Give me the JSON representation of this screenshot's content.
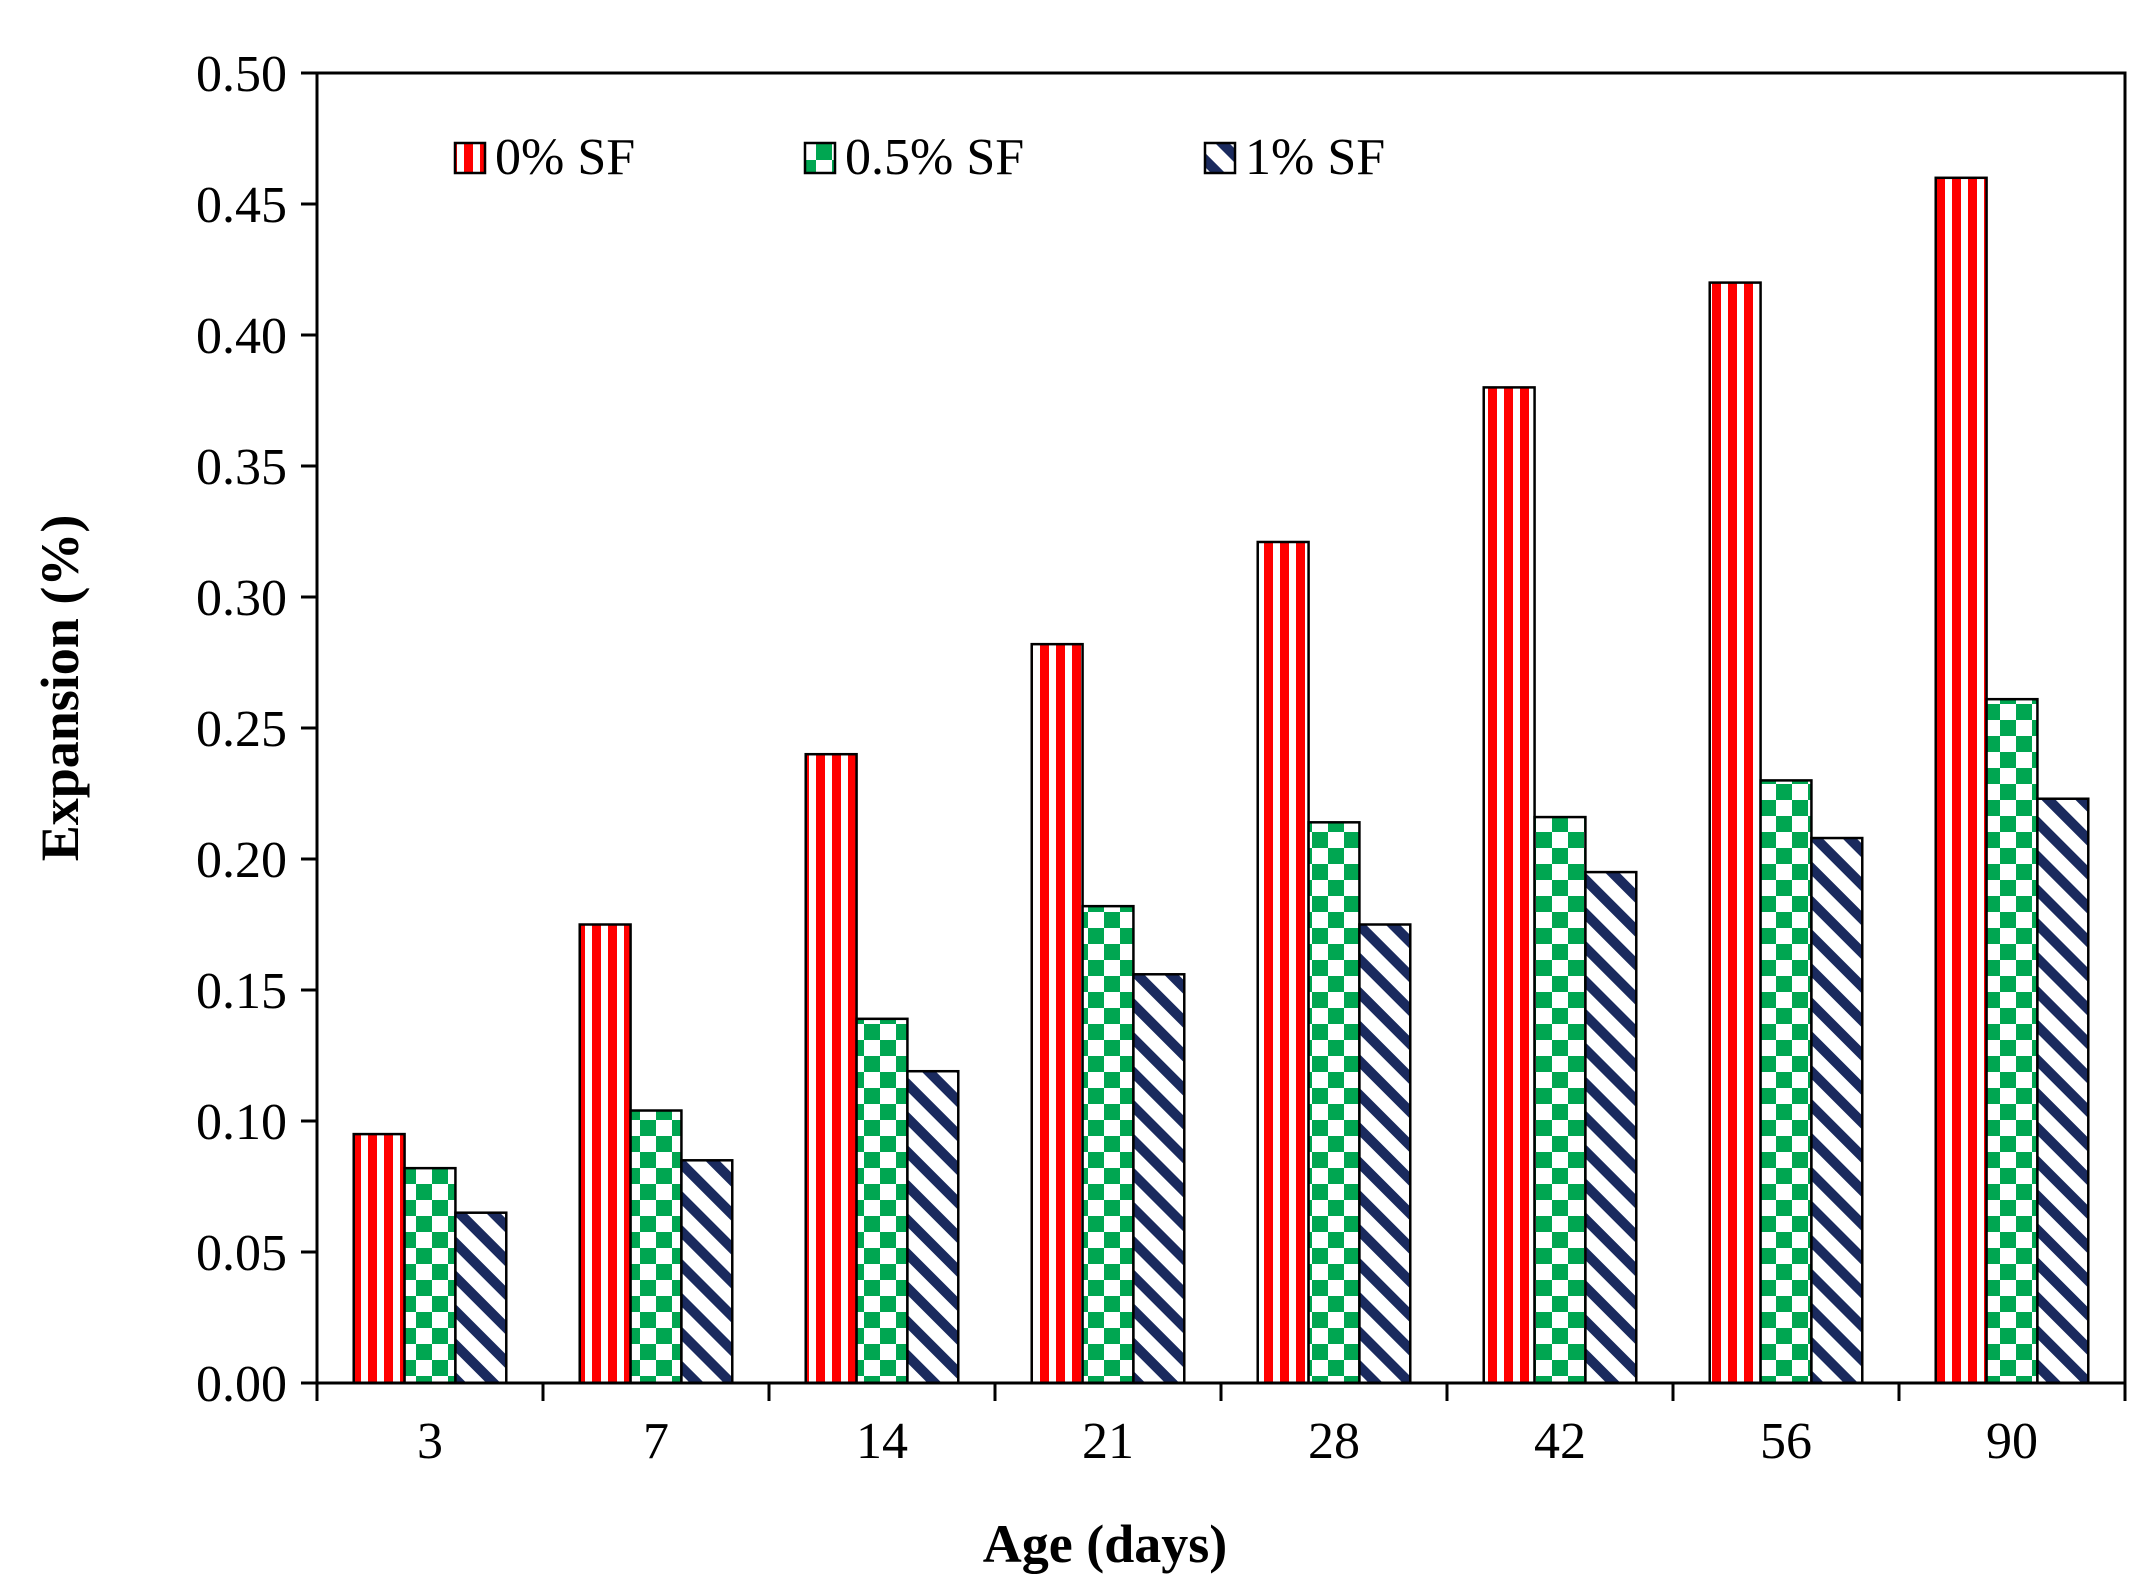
{
  "chart_data": {
    "type": "bar",
    "title": "",
    "xlabel": "Age (days)",
    "ylabel": "Expansion (%)",
    "ylim": [
      0,
      0.5
    ],
    "yticks": [
      "0.00",
      "0.05",
      "0.10",
      "0.15",
      "0.20",
      "0.25",
      "0.30",
      "0.35",
      "0.40",
      "0.45",
      "0.50"
    ],
    "categories": [
      "3",
      "7",
      "14",
      "21",
      "28",
      "42",
      "56",
      "90"
    ],
    "series": [
      {
        "name": "0% SF",
        "values": [
          0.095,
          0.175,
          0.24,
          0.282,
          0.321,
          0.38,
          0.42,
          0.46
        ],
        "color": "#ff0000",
        "pattern": "vertical-stripes"
      },
      {
        "name": "0.5% SF",
        "values": [
          0.082,
          0.104,
          0.139,
          0.182,
          0.214,
          0.216,
          0.23,
          0.261
        ],
        "color": "#00a651",
        "pattern": "checkerboard"
      },
      {
        "name": "1% SF",
        "values": [
          0.065,
          0.085,
          0.119,
          0.156,
          0.175,
          0.195,
          0.208,
          0.223
        ],
        "color": "#1a2a5e",
        "pattern": "diagonal-stripes"
      }
    ],
    "legend_position": "top-left",
    "grid": false
  }
}
